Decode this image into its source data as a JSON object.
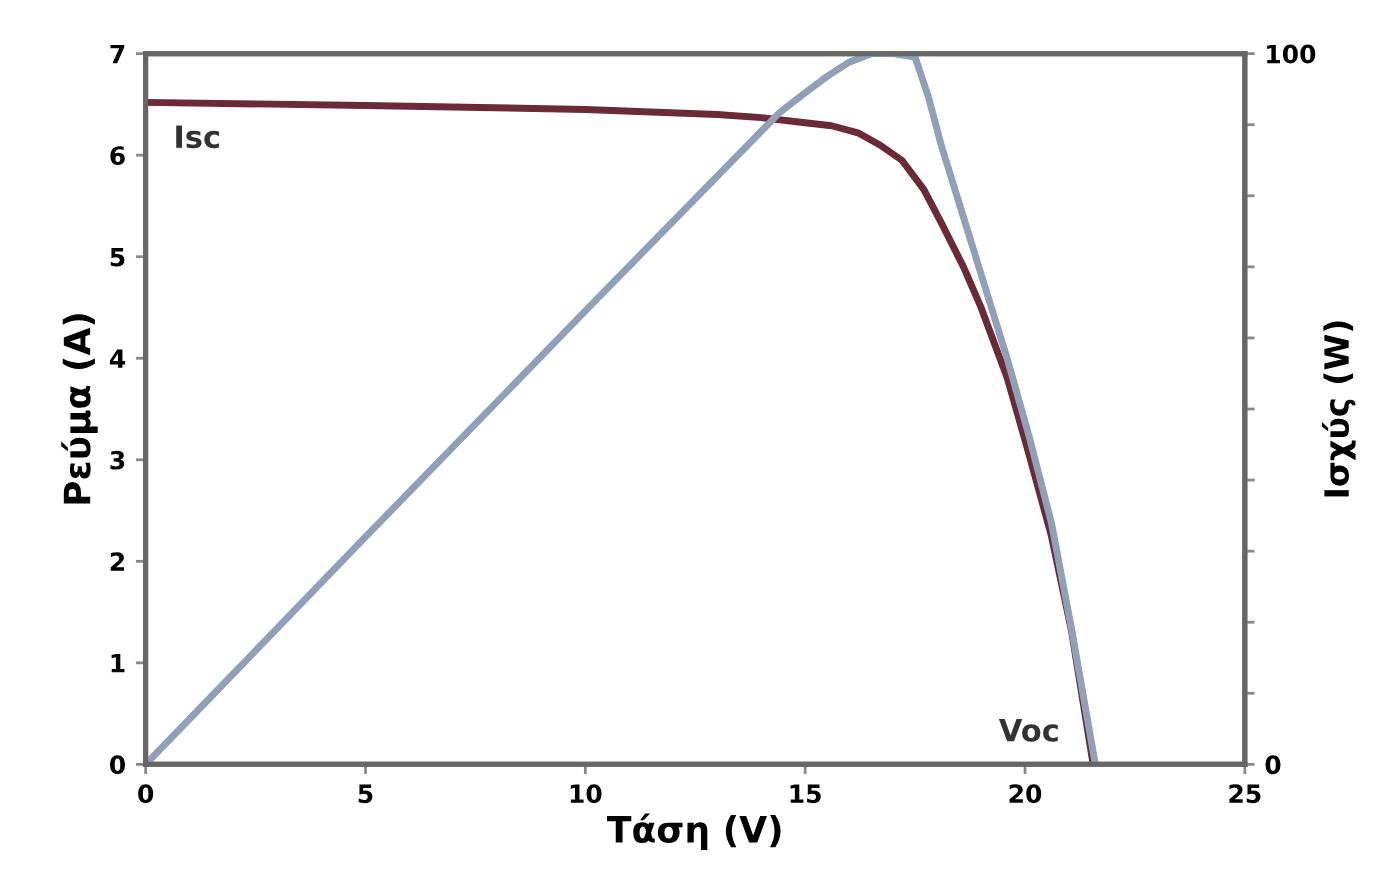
{
  "chart_data": {
    "type": "line",
    "xlabel": "Τάση (V)",
    "ylabel": "Ρεύμα (A)",
    "y2label": "Ισχύς (W)",
    "xlim": [
      0,
      25
    ],
    "xticks": [
      0,
      5,
      10,
      15,
      20,
      25
    ],
    "ylim": [
      0,
      7
    ],
    "yticks": [
      0,
      1,
      2,
      3,
      4,
      5,
      6,
      7
    ],
    "y2lim": [
      0,
      100
    ],
    "y2ticks": [
      0,
      {
        "value": 10,
        "label": null
      },
      {
        "value": 20,
        "label": null
      },
      {
        "value": 30,
        "label": null
      },
      {
        "value": 40,
        "label": null
      },
      {
        "value": 50,
        "label": null
      },
      {
        "value": 60,
        "label": null
      },
      {
        "value": 70,
        "label": null
      },
      {
        "value": 80,
        "label": null
      },
      {
        "value": 90,
        "label": null
      },
      100
    ],
    "grid": false,
    "legend": false,
    "marker": "none",
    "line_style": "solid",
    "series": [
      {
        "color": "#6b2a35",
        "x": [
          0,
          5,
          10,
          13,
          14,
          15,
          15.6,
          16.2,
          16.7,
          17.2,
          17.7,
          18.1,
          18.6,
          19,
          19.6,
          20.1,
          20.6,
          21.06,
          21.55
        ],
        "values": [
          6.52,
          6.49,
          6.45,
          6.4,
          6.37,
          6.32,
          6.29,
          6.22,
          6.1,
          5.95,
          5.66,
          5.33,
          4.9,
          4.5,
          3.8,
          3.04,
          2.25,
          1.31,
          0
        ]
      },
      {
        "color": "#8fa0b8",
        "axis": "y2",
        "x": [
          0,
          5,
          10,
          14.4,
          15,
          15.5,
          16,
          16.5,
          17,
          17.5,
          17.8,
          18.1,
          18.6,
          19.1,
          19.6,
          20.1,
          20.6,
          21.06,
          21.6
        ],
        "values": [
          0,
          32,
          63.8,
          91.6,
          94.5,
          96.8,
          98.8,
          100,
          100,
          99.5,
          94,
          87,
          77,
          67,
          57,
          46,
          34,
          19,
          0
        ]
      }
    ],
    "annotations": [
      {
        "text": "Isc",
        "x": 0,
        "y": 6.52
      },
      {
        "text": "Voc",
        "x": 21.55,
        "y": 0
      }
    ]
  }
}
